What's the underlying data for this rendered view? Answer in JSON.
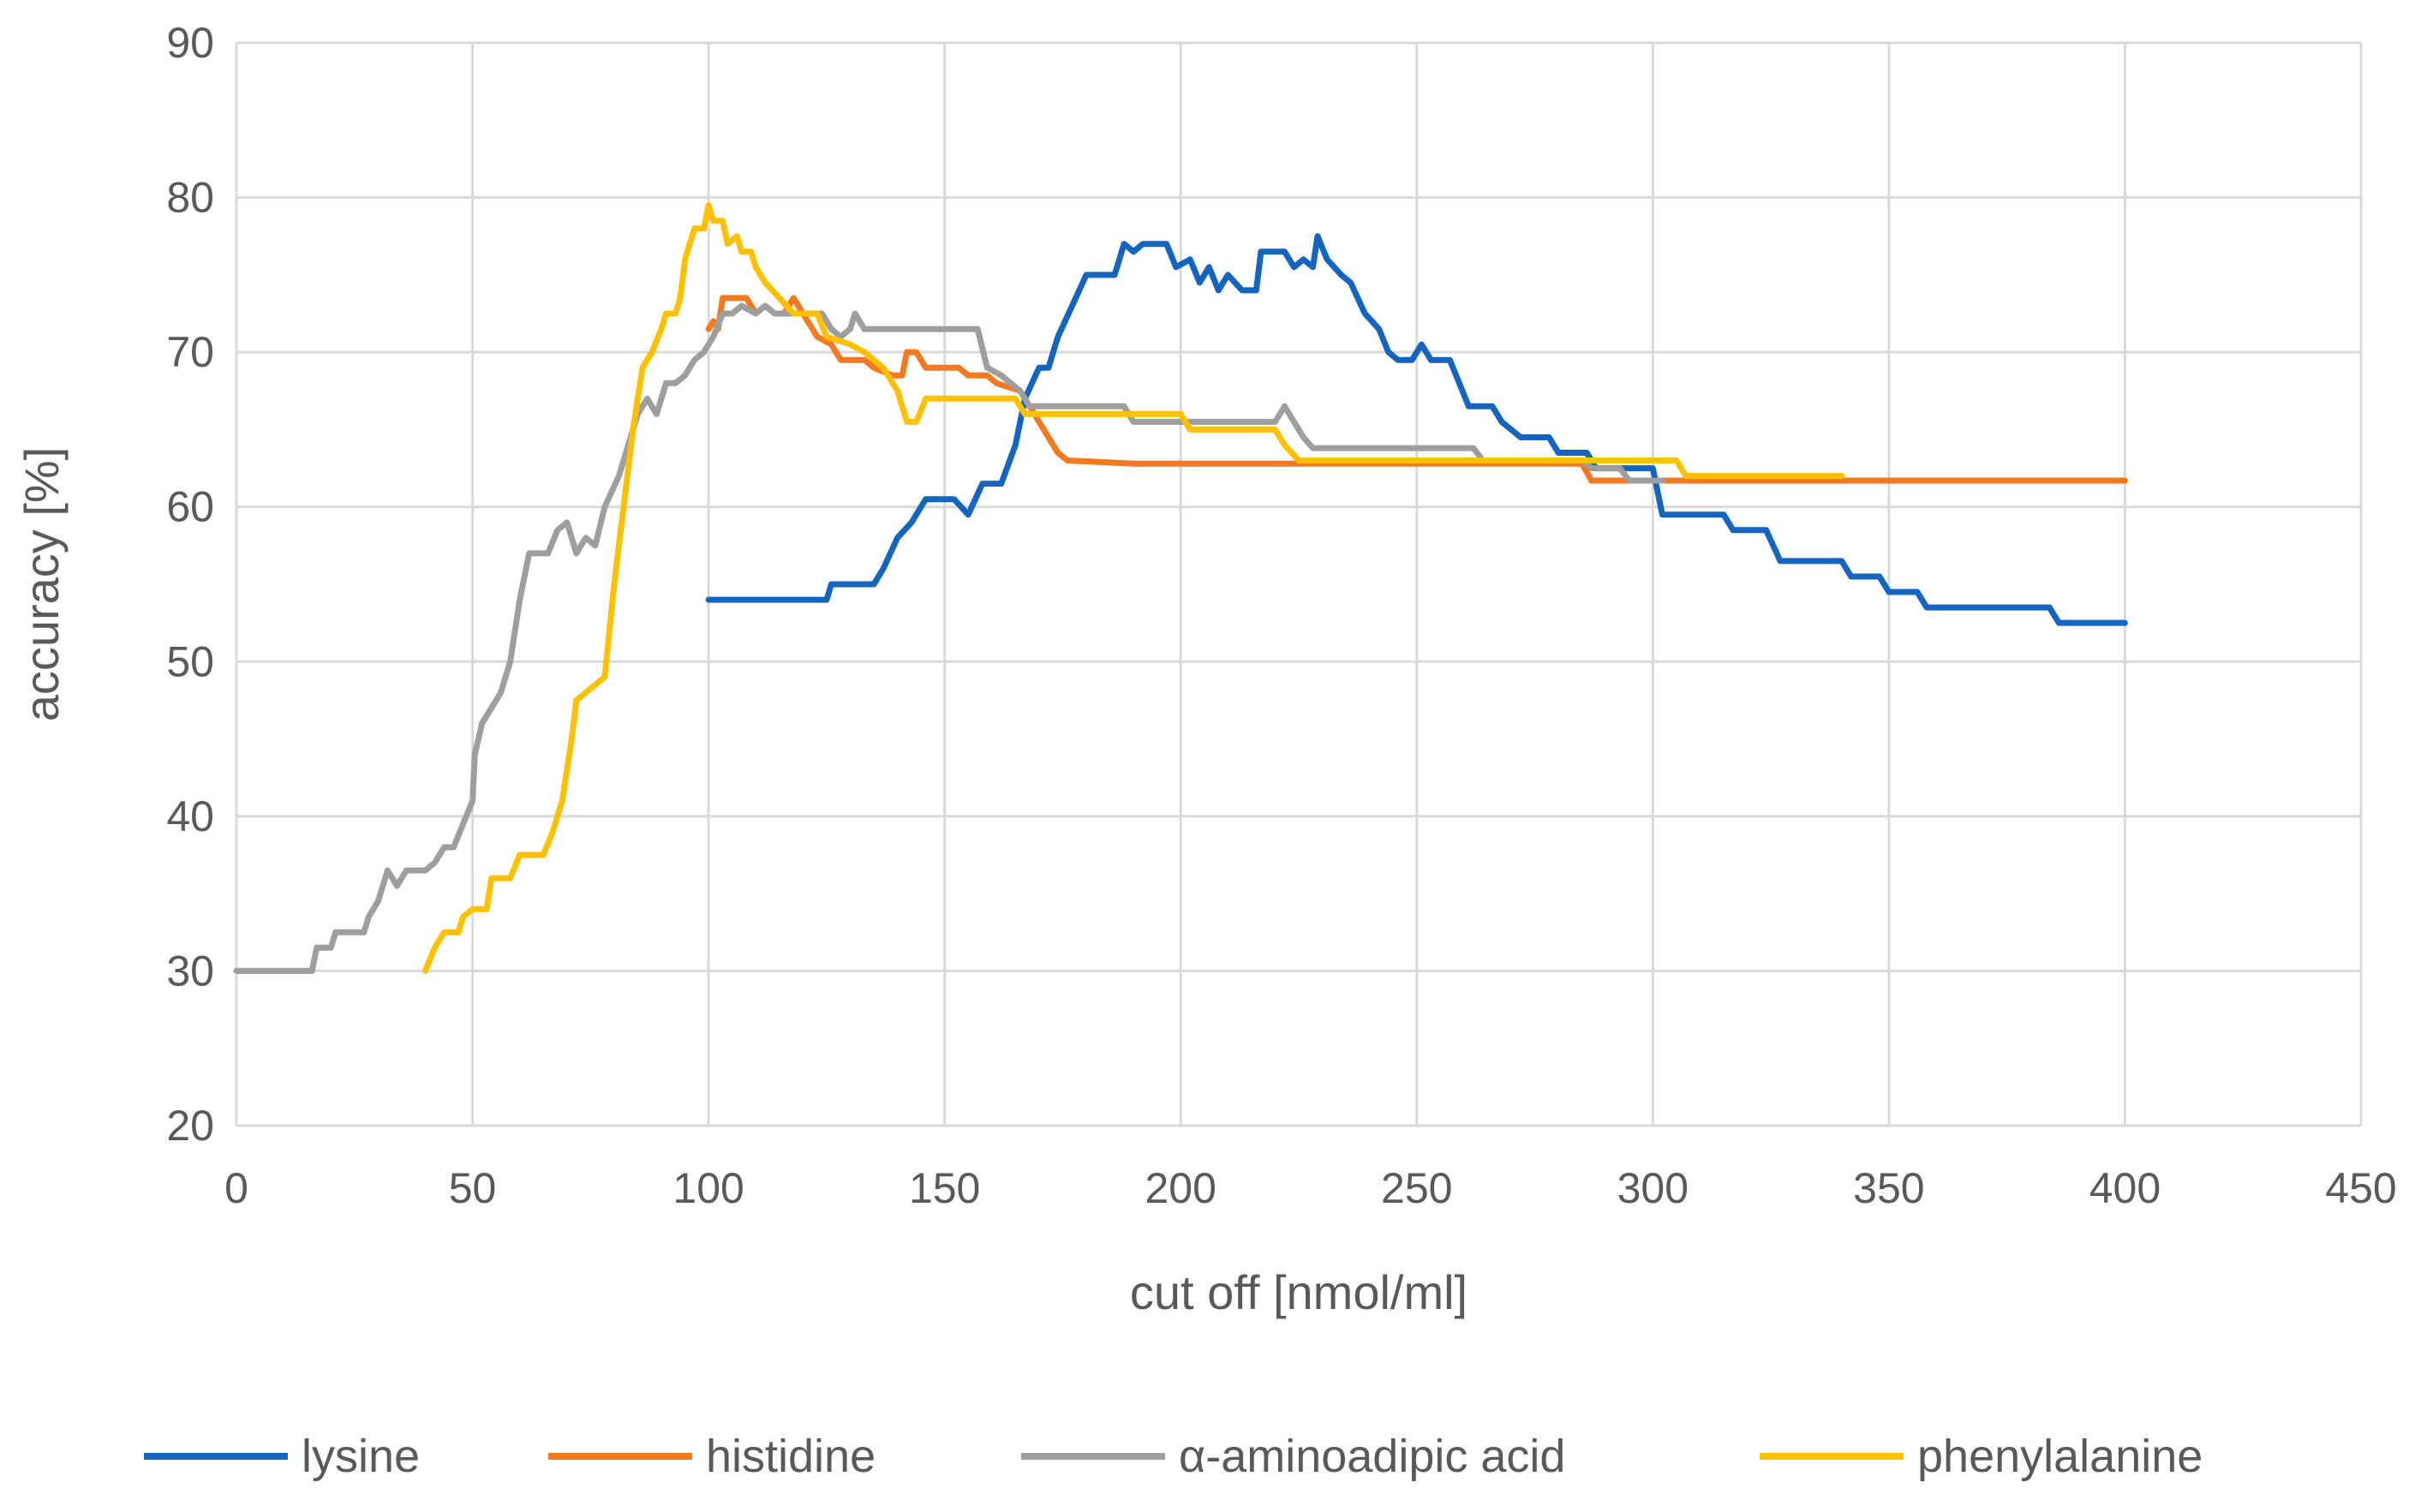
{
  "chart_data": {
    "type": "line",
    "title": "",
    "xlabel": "cut off [nmol/ml]",
    "ylabel": "accuracy [%]",
    "xlim": [
      0,
      450
    ],
    "ylim": [
      20,
      90
    ],
    "x_ticks": [
      "0",
      "50",
      "100",
      "150",
      "200",
      "250",
      "300",
      "350",
      "400",
      "450"
    ],
    "y_ticks": [
      "20",
      "30",
      "40",
      "50",
      "60",
      "70",
      "80",
      "90"
    ],
    "grid": true,
    "legend_position": "bottom",
    "series": [
      {
        "name": "lysine",
        "color": "#1565C0",
        "points": [
          [
            100,
            54
          ],
          [
            125,
            54
          ],
          [
            126,
            55
          ],
          [
            135,
            55
          ],
          [
            137,
            56
          ],
          [
            140,
            58
          ],
          [
            143,
            59
          ],
          [
            146,
            60.5
          ],
          [
            152,
            60.5
          ],
          [
            155,
            59.5
          ],
          [
            158,
            61.5
          ],
          [
            162,
            61.5
          ],
          [
            165,
            64
          ],
          [
            167,
            67
          ],
          [
            170,
            69
          ],
          [
            172,
            69
          ],
          [
            174,
            71
          ],
          [
            177,
            73
          ],
          [
            180,
            75
          ],
          [
            186,
            75
          ],
          [
            188,
            77
          ],
          [
            190,
            76.5
          ],
          [
            192,
            77
          ],
          [
            197,
            77
          ],
          [
            199,
            75.5
          ],
          [
            202,
            76
          ],
          [
            204,
            74.5
          ],
          [
            206,
            75.5
          ],
          [
            208,
            74
          ],
          [
            210,
            75
          ],
          [
            213,
            74
          ],
          [
            216,
            74
          ],
          [
            217,
            76.5
          ],
          [
            222,
            76.5
          ],
          [
            224,
            75.5
          ],
          [
            226,
            76
          ],
          [
            228,
            75.5
          ],
          [
            229,
            77.5
          ],
          [
            231,
            76
          ],
          [
            234,
            75
          ],
          [
            236,
            74.5
          ],
          [
            239,
            72.5
          ],
          [
            242,
            71.5
          ],
          [
            244,
            70
          ],
          [
            246,
            69.5
          ],
          [
            249,
            69.5
          ],
          [
            251,
            70.5
          ],
          [
            253,
            69.5
          ],
          [
            257,
            69.5
          ],
          [
            259,
            68
          ],
          [
            261,
            66.5
          ],
          [
            266,
            66.5
          ],
          [
            268,
            65.5
          ],
          [
            272,
            64.5
          ],
          [
            278,
            64.5
          ],
          [
            280,
            63.5
          ],
          [
            286,
            63.5
          ],
          [
            288,
            62.5
          ],
          [
            300,
            62.5
          ],
          [
            302,
            59.5
          ],
          [
            315,
            59.5
          ],
          [
            317,
            58.5
          ],
          [
            324,
            58.5
          ],
          [
            327,
            56.5
          ],
          [
            340,
            56.5
          ],
          [
            342,
            55.5
          ],
          [
            348,
            55.5
          ],
          [
            350,
            54.5
          ],
          [
            356,
            54.5
          ],
          [
            358,
            53.5
          ],
          [
            384,
            53.5
          ],
          [
            386,
            52.5
          ],
          [
            400,
            52.5
          ]
        ]
      },
      {
        "name": "histidine",
        "color": "#F47920",
        "points": [
          [
            100,
            71.5
          ],
          [
            101,
            72
          ],
          [
            102,
            71.5
          ],
          [
            103,
            73.5
          ],
          [
            108,
            73.5
          ],
          [
            110,
            72.5
          ],
          [
            112,
            73
          ],
          [
            114,
            72.5
          ],
          [
            116,
            72.5
          ],
          [
            118,
            73.5
          ],
          [
            120,
            72.5
          ],
          [
            123,
            71
          ],
          [
            126,
            70.5
          ],
          [
            128,
            69.5
          ],
          [
            133,
            69.5
          ],
          [
            135,
            69
          ],
          [
            139,
            68.5
          ],
          [
            141,
            68.5
          ],
          [
            142,
            70
          ],
          [
            144,
            70
          ],
          [
            146,
            69
          ],
          [
            153,
            69
          ],
          [
            155,
            68.5
          ],
          [
            159,
            68.5
          ],
          [
            161,
            68
          ],
          [
            166,
            67.5
          ],
          [
            168,
            66.5
          ],
          [
            170,
            65.5
          ],
          [
            172,
            64.5
          ],
          [
            174,
            63.5
          ],
          [
            176,
            63
          ],
          [
            190,
            62.8
          ],
          [
            250,
            62.8
          ],
          [
            285,
            62.8
          ],
          [
            287,
            61.7
          ],
          [
            400,
            61.7
          ]
        ]
      },
      {
        "name": "α-aminoadipic acid",
        "color": "#9E9E9E",
        "points": [
          [
            0,
            30
          ],
          [
            16,
            30
          ],
          [
            17,
            31.5
          ],
          [
            20,
            31.5
          ],
          [
            21,
            32.5
          ],
          [
            27,
            32.5
          ],
          [
            28,
            33.5
          ],
          [
            30,
            34.5
          ],
          [
            32,
            36.5
          ],
          [
            34,
            35.5
          ],
          [
            36,
            36.5
          ],
          [
            40,
            36.5
          ],
          [
            42,
            37
          ],
          [
            44,
            38
          ],
          [
            46,
            38
          ],
          [
            48,
            39.5
          ],
          [
            50,
            41
          ],
          [
            50.5,
            44
          ],
          [
            52,
            46
          ],
          [
            54,
            47
          ],
          [
            56,
            48
          ],
          [
            58,
            50
          ],
          [
            60,
            54
          ],
          [
            62,
            57
          ],
          [
            66,
            57
          ],
          [
            68,
            58.5
          ],
          [
            70,
            59
          ],
          [
            72,
            57
          ],
          [
            74,
            58
          ],
          [
            76,
            57.5
          ],
          [
            78,
            60
          ],
          [
            81,
            62
          ],
          [
            83,
            64
          ],
          [
            85,
            66
          ],
          [
            87,
            67
          ],
          [
            89,
            66
          ],
          [
            91,
            68
          ],
          [
            93,
            68
          ],
          [
            95,
            68.5
          ],
          [
            97,
            69.5
          ],
          [
            99,
            70
          ],
          [
            101,
            71
          ],
          [
            103,
            72.5
          ],
          [
            105,
            72.5
          ],
          [
            107,
            73
          ],
          [
            110,
            72.5
          ],
          [
            112,
            73
          ],
          [
            114,
            72.5
          ],
          [
            124,
            72.5
          ],
          [
            126,
            71.5
          ],
          [
            128,
            71
          ],
          [
            130,
            71.5
          ],
          [
            131,
            72.5
          ],
          [
            133,
            71.5
          ],
          [
            157,
            71.5
          ],
          [
            159,
            69
          ],
          [
            162,
            68.5
          ],
          [
            166,
            67.5
          ],
          [
            168,
            66.5
          ],
          [
            188,
            66.5
          ],
          [
            190,
            65.5
          ],
          [
            220,
            65.5
          ],
          [
            222,
            66.5
          ],
          [
            224,
            65.5
          ],
          [
            226,
            64.5
          ],
          [
            228,
            63.8
          ],
          [
            262,
            63.8
          ],
          [
            264,
            63
          ],
          [
            285,
            63
          ],
          [
            287,
            62.5
          ],
          [
            293,
            62.5
          ],
          [
            295,
            61.7
          ],
          [
            302,
            61.7
          ]
        ]
      },
      {
        "name": "phenylalanine",
        "color": "#FFC000",
        "points": [
          [
            40,
            30
          ],
          [
            42,
            31.5
          ],
          [
            44,
            32.5
          ],
          [
            47,
            32.5
          ],
          [
            48,
            33.5
          ],
          [
            50,
            34
          ],
          [
            53,
            34
          ],
          [
            54,
            36
          ],
          [
            58,
            36
          ],
          [
            60,
            37.5
          ],
          [
            65,
            37.5
          ],
          [
            67,
            39
          ],
          [
            69,
            41
          ],
          [
            70,
            43
          ],
          [
            71,
            45
          ],
          [
            72,
            47.5
          ],
          [
            74,
            48
          ],
          [
            76,
            48.5
          ],
          [
            78,
            49
          ],
          [
            79,
            52
          ],
          [
            80,
            55
          ],
          [
            82,
            60
          ],
          [
            84,
            65
          ],
          [
            86,
            69
          ],
          [
            88,
            70
          ],
          [
            90,
            71.5
          ],
          [
            91,
            72.5
          ],
          [
            93,
            72.5
          ],
          [
            94,
            73.5
          ],
          [
            95,
            76
          ],
          [
            97,
            78
          ],
          [
            99,
            78
          ],
          [
            100,
            79.5
          ],
          [
            101,
            78.5
          ],
          [
            103,
            78.5
          ],
          [
            104,
            77
          ],
          [
            106,
            77.5
          ],
          [
            107,
            76.5
          ],
          [
            109,
            76.5
          ],
          [
            110,
            75.5
          ],
          [
            112,
            74.5
          ],
          [
            115,
            73.5
          ],
          [
            118,
            72.5
          ],
          [
            123,
            72.5
          ],
          [
            125,
            71
          ],
          [
            130,
            70.5
          ],
          [
            133,
            70
          ],
          [
            137,
            69
          ],
          [
            140,
            67.5
          ],
          [
            142,
            65.5
          ],
          [
            144,
            65.5
          ],
          [
            146,
            67
          ],
          [
            165,
            67
          ],
          [
            167,
            66
          ],
          [
            200,
            66
          ],
          [
            202,
            65
          ],
          [
            220,
            65
          ],
          [
            222,
            64
          ],
          [
            225,
            63
          ],
          [
            305,
            63
          ],
          [
            307,
            62
          ],
          [
            340,
            62
          ]
        ]
      }
    ]
  }
}
